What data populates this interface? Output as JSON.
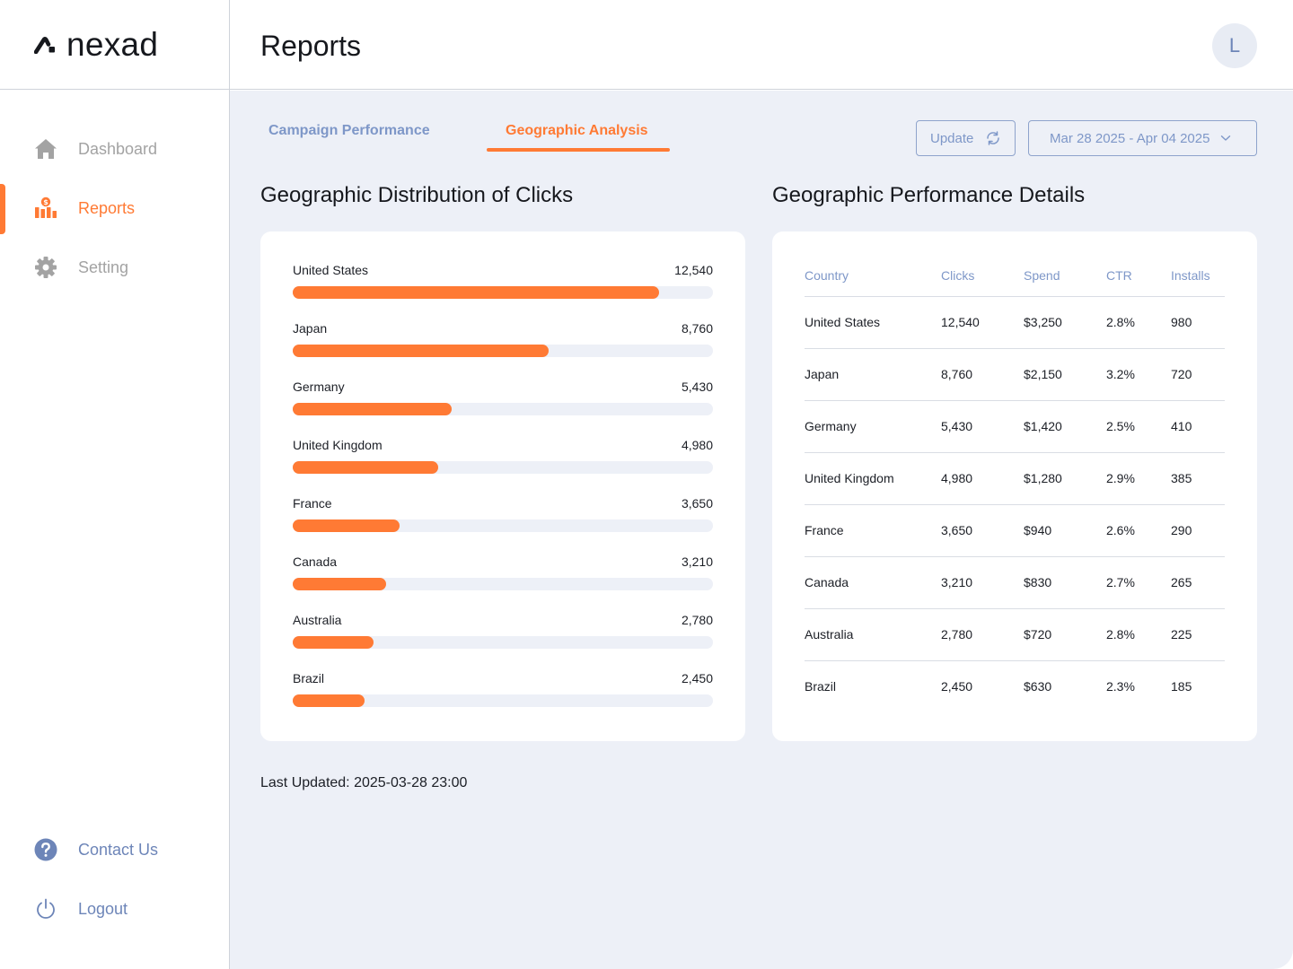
{
  "brand": {
    "name": "nexad"
  },
  "sidebar": {
    "items": [
      {
        "label": "Dashboard",
        "icon": "home-icon",
        "active": false
      },
      {
        "label": "Reports",
        "icon": "reports-icon",
        "active": true
      },
      {
        "label": "Setting",
        "icon": "gear-icon",
        "active": false
      }
    ],
    "bottom": [
      {
        "label": "Contact Us",
        "icon": "help-icon"
      },
      {
        "label": "Logout",
        "icon": "power-icon"
      }
    ]
  },
  "header": {
    "title": "Reports",
    "avatar_initial": "L"
  },
  "tabs": [
    {
      "label": "Campaign Performance",
      "active": false
    },
    {
      "label": "Geographic Analysis",
      "active": true
    }
  ],
  "toolbar": {
    "update_label": "Update",
    "date_range": "Mar 28 2025 - Apr 04 2025"
  },
  "chart_section": {
    "title": "Geographic Distribution of Clicks"
  },
  "table_section": {
    "title": "Geographic Performance Details"
  },
  "chart_data": {
    "type": "bar",
    "orientation": "horizontal",
    "categories": [
      "United States",
      "Japan",
      "Germany",
      "United Kingdom",
      "France",
      "Canada",
      "Australia",
      "Brazil"
    ],
    "values": [
      12540,
      8760,
      5430,
      4980,
      3650,
      3210,
      2780,
      2450
    ],
    "value_labels": [
      "12,540",
      "8,760",
      "5,430",
      "4,980",
      "3,650",
      "3,210",
      "2,780",
      "2,450"
    ],
    "xlim": [
      0,
      14400
    ],
    "bar_color": "#ff7a34",
    "track_color": "#edf0f7"
  },
  "table": {
    "columns": [
      "Country",
      "Clicks",
      "Spend",
      "CTR",
      "Installs"
    ],
    "rows": [
      [
        "United States",
        "12,540",
        "$3,250",
        "2.8%",
        "980"
      ],
      [
        "Japan",
        "8,760",
        "$2,150",
        "3.2%",
        "720"
      ],
      [
        "Germany",
        "5,430",
        "$1,420",
        "2.5%",
        "410"
      ],
      [
        "United Kingdom",
        "4,980",
        "$1,280",
        "2.9%",
        "385"
      ],
      [
        "France",
        "3,650",
        "$940",
        "2.6%",
        "290"
      ],
      [
        "Canada",
        "3,210",
        "$830",
        "2.7%",
        "265"
      ],
      [
        "Australia",
        "2,780",
        "$720",
        "2.8%",
        "225"
      ],
      [
        "Brazil",
        "2,450",
        "$630",
        "2.3%",
        "185"
      ]
    ]
  },
  "footer": {
    "last_updated": "Last Updated: 2025-03-28 23:00"
  },
  "colors": {
    "accent": "#ff7a34",
    "muted_blue": "#7e97c8",
    "background": "#edf0f7"
  }
}
